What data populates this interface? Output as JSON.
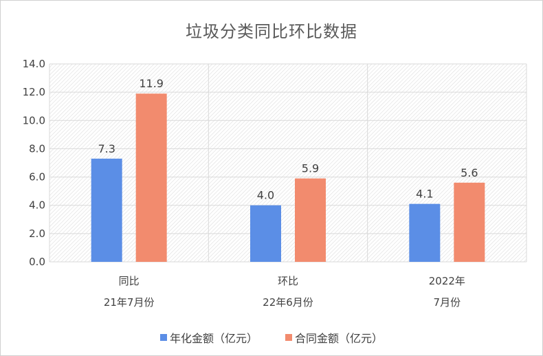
{
  "chart_data": {
    "type": "bar",
    "title": "垃圾分类同比环比数据",
    "categories": [
      [
        "同比",
        "21年7月份"
      ],
      [
        "环比",
        "22年6月份"
      ],
      [
        "2022年",
        "7月份"
      ]
    ],
    "series": [
      {
        "name": "年化金额（亿元）",
        "values": [
          7.3,
          4.0,
          4.1
        ],
        "labels": [
          "7.3",
          "4.0",
          "4.1"
        ],
        "color": "#5b8ee6"
      },
      {
        "name": "合同金额（亿元）",
        "values": [
          11.9,
          5.9,
          5.6
        ],
        "labels": [
          "11.9",
          "5.9",
          "5.6"
        ],
        "color": "#f28b6e"
      }
    ],
    "y_ticks": [
      "0.0",
      "2.0",
      "4.0",
      "6.0",
      "8.0",
      "10.0",
      "12.0",
      "14.0"
    ],
    "ylim": [
      0,
      14
    ],
    "grid": true,
    "legend_position": "bottom"
  }
}
